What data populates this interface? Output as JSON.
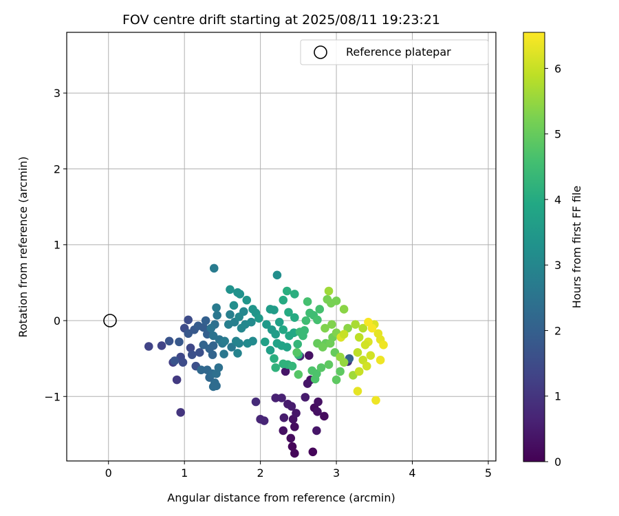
{
  "chart_data": {
    "type": "scatter",
    "title": "FOV centre drift starting at 2025/08/11 19:23:21",
    "xlabel": "Angular distance from reference (arcmin)",
    "ylabel": "Rotation from reference (arcmin)",
    "xlim": [
      -0.55,
      5.1
    ],
    "ylim": [
      -1.85,
      3.8
    ],
    "xticks": [
      0,
      1,
      2,
      3,
      4,
      5
    ],
    "yticks": [
      -1,
      0,
      1,
      2,
      3
    ],
    "xtick_labels": [
      "0",
      "1",
      "2",
      "3",
      "4",
      "5"
    ],
    "ytick_labels": [
      "−1",
      "0",
      "1",
      "2",
      "3"
    ],
    "grid": true,
    "legend": {
      "placement": "top-right",
      "entries": [
        "Reference platepar"
      ]
    },
    "reference_point": {
      "x": 0,
      "y": 0,
      "label": "Reference platepar"
    },
    "colorbar": {
      "label": "Hours from first FF file",
      "range": [
        0,
        6.55
      ],
      "ticks": [
        0,
        1,
        2,
        3,
        4,
        5,
        6
      ],
      "tick_labels": [
        "0",
        "1",
        "2",
        "3",
        "4",
        "5",
        "6"
      ],
      "colormap": "viridis"
    },
    "points": [
      [
        2.42,
        -1.66,
        0.1
      ],
      [
        2.45,
        -1.75,
        0.1
      ],
      [
        2.69,
        -1.73,
        0.1
      ],
      [
        2.4,
        -1.55,
        0.2
      ],
      [
        2.84,
        -1.26,
        0.2
      ],
      [
        2.71,
        -1.15,
        0.2
      ],
      [
        2.45,
        -1.4,
        0.2
      ],
      [
        2.43,
        -1.3,
        0.3
      ],
      [
        2.3,
        -1.45,
        0.3
      ],
      [
        2.76,
        -1.07,
        0.3
      ],
      [
        2.75,
        -1.2,
        0.3
      ],
      [
        2.66,
        -0.78,
        0.3
      ],
      [
        2.64,
        -0.46,
        0.3
      ],
      [
        2.33,
        -0.67,
        0.4
      ],
      [
        2.74,
        -1.45,
        0.4
      ],
      [
        2.47,
        -1.22,
        0.4
      ],
      [
        2.62,
        -0.83,
        0.4
      ],
      [
        2.59,
        -1.01,
        0.5
      ],
      [
        2.31,
        -1.28,
        0.5
      ],
      [
        2.41,
        -1.13,
        0.5
      ],
      [
        2.36,
        -1.1,
        0.5
      ],
      [
        2.2,
        -1.02,
        0.6
      ],
      [
        2.28,
        -1.02,
        0.6
      ],
      [
        2.52,
        -0.47,
        0.7
      ],
      [
        2.0,
        -1.3,
        0.7
      ],
      [
        2.05,
        -1.32,
        0.7
      ],
      [
        1.94,
        -1.07,
        0.8
      ],
      [
        3.15,
        -0.54,
        0.8
      ],
      [
        0.95,
        -1.21,
        1.0
      ],
      [
        0.9,
        -0.78,
        1.1
      ],
      [
        0.85,
        -0.55,
        1.2
      ],
      [
        0.53,
        -0.34,
        1.3
      ],
      [
        0.7,
        -0.33,
        1.3
      ],
      [
        0.95,
        -0.48,
        1.4
      ],
      [
        1.08,
        -0.36,
        1.4
      ],
      [
        1.0,
        -0.1,
        1.5
      ],
      [
        1.05,
        0.01,
        1.5
      ],
      [
        0.98,
        -0.55,
        1.5
      ],
      [
        1.15,
        -0.6,
        1.6
      ],
      [
        1.1,
        -0.45,
        1.6
      ],
      [
        1.2,
        -0.42,
        1.6
      ],
      [
        0.87,
        -0.53,
        1.7
      ],
      [
        0.8,
        -0.27,
        1.7
      ],
      [
        0.93,
        -0.28,
        1.8
      ],
      [
        1.05,
        -0.17,
        1.8
      ],
      [
        1.13,
        -0.12,
        1.8
      ],
      [
        1.18,
        -0.07,
        1.9
      ],
      [
        1.25,
        -0.09,
        1.9
      ],
      [
        1.28,
        0.0,
        2.0
      ],
      [
        3.17,
        -0.5,
        2.0
      ],
      [
        1.3,
        -0.18,
        2.0
      ],
      [
        1.25,
        -0.32,
        2.1
      ],
      [
        1.33,
        -0.37,
        2.1
      ],
      [
        1.38,
        -0.33,
        2.1
      ],
      [
        1.37,
        -0.45,
        2.1
      ],
      [
        1.22,
        -0.65,
        2.2
      ],
      [
        1.3,
        -0.65,
        2.2
      ],
      [
        1.33,
        -0.75,
        2.2
      ],
      [
        1.4,
        -0.82,
        2.3
      ],
      [
        1.42,
        -0.86,
        2.3
      ],
      [
        1.38,
        -0.87,
        2.3
      ],
      [
        1.37,
        -0.7,
        2.3
      ],
      [
        1.42,
        -0.7,
        2.4
      ],
      [
        1.45,
        -0.62,
        2.4
      ],
      [
        1.4,
        -0.05,
        2.4
      ],
      [
        1.35,
        -0.1,
        2.5
      ],
      [
        1.38,
        -0.2,
        2.5
      ],
      [
        1.46,
        -0.25,
        2.5
      ],
      [
        1.5,
        -0.3,
        2.6
      ],
      [
        1.52,
        -0.44,
        2.6
      ],
      [
        1.62,
        -0.35,
        2.6
      ],
      [
        1.43,
        0.07,
        2.6
      ],
      [
        1.42,
        0.17,
        2.7
      ],
      [
        1.39,
        0.69,
        2.7
      ],
      [
        1.53,
        -0.27,
        2.7
      ],
      [
        1.58,
        -0.05,
        2.8
      ],
      [
        1.6,
        0.08,
        2.8
      ],
      [
        1.66,
        -0.02,
        2.8
      ],
      [
        1.68,
        -0.27,
        2.9
      ],
      [
        1.72,
        -0.3,
        2.9
      ],
      [
        1.7,
        -0.43,
        2.9
      ],
      [
        1.75,
        -0.1,
        3.0
      ],
      [
        1.72,
        0.05,
        3.0
      ],
      [
        1.78,
        0.12,
        3.0
      ],
      [
        1.8,
        -0.05,
        3.0
      ],
      [
        1.88,
        -0.02,
        3.1
      ],
      [
        1.83,
        -0.3,
        3.1
      ],
      [
        1.9,
        -0.27,
        3.1
      ],
      [
        2.22,
        0.6,
        3.2
      ],
      [
        1.65,
        0.2,
        3.2
      ],
      [
        1.7,
        0.37,
        3.3
      ],
      [
        1.6,
        0.41,
        3.3
      ],
      [
        1.73,
        0.35,
        3.3
      ],
      [
        1.82,
        0.27,
        3.4
      ],
      [
        1.9,
        0.15,
        3.4
      ],
      [
        1.94,
        0.1,
        3.4
      ],
      [
        1.98,
        0.03,
        3.5
      ],
      [
        2.08,
        -0.05,
        3.5
      ],
      [
        2.15,
        -0.12,
        3.5
      ],
      [
        2.2,
        -0.18,
        3.6
      ],
      [
        2.13,
        0.15,
        3.6
      ],
      [
        2.18,
        0.14,
        3.6
      ],
      [
        2.25,
        -0.02,
        3.7
      ],
      [
        2.06,
        -0.28,
        3.7
      ],
      [
        2.13,
        -0.39,
        3.7
      ],
      [
        2.22,
        -0.3,
        3.8
      ],
      [
        2.28,
        -0.33,
        3.8
      ],
      [
        2.35,
        -0.35,
        3.8
      ],
      [
        2.3,
        -0.12,
        3.9
      ],
      [
        2.38,
        -0.2,
        3.9
      ],
      [
        2.44,
        -0.16,
        3.9
      ],
      [
        2.37,
        0.11,
        4.0
      ],
      [
        2.45,
        0.04,
        4.0
      ],
      [
        2.3,
        0.27,
        4.0
      ],
      [
        2.35,
        0.39,
        4.1
      ],
      [
        2.45,
        0.35,
        4.1
      ],
      [
        2.18,
        -0.5,
        4.1
      ],
      [
        2.2,
        -0.62,
        4.2
      ],
      [
        2.3,
        -0.57,
        4.2
      ],
      [
        2.36,
        -0.58,
        4.2
      ],
      [
        2.42,
        -0.6,
        4.3
      ],
      [
        2.5,
        -0.45,
        4.3
      ],
      [
        2.49,
        -0.31,
        4.3
      ],
      [
        2.56,
        -0.2,
        4.4
      ],
      [
        2.52,
        -0.15,
        4.4
      ],
      [
        2.58,
        -0.13,
        4.4
      ],
      [
        2.6,
        0.0,
        4.5
      ],
      [
        2.65,
        0.1,
        4.5
      ],
      [
        2.7,
        0.07,
        4.5
      ],
      [
        2.75,
        0.01,
        4.6
      ],
      [
        2.62,
        0.25,
        4.6
      ],
      [
        2.78,
        0.15,
        4.6
      ],
      [
        2.68,
        -0.66,
        4.7
      ],
      [
        2.72,
        -0.77,
        4.7
      ],
      [
        2.74,
        -0.7,
        4.7
      ],
      [
        2.5,
        -0.71,
        4.8
      ],
      [
        2.48,
        -0.42,
        4.8
      ],
      [
        2.8,
        -0.62,
        4.8
      ],
      [
        3.0,
        -0.78,
        4.9
      ],
      [
        3.05,
        -0.67,
        4.9
      ],
      [
        2.9,
        -0.58,
        4.9
      ],
      [
        2.98,
        -0.42,
        5.0
      ],
      [
        2.86,
        -0.3,
        5.0
      ],
      [
        2.75,
        -0.3,
        5.0
      ],
      [
        2.82,
        -0.35,
        5.1
      ],
      [
        2.92,
        -0.3,
        5.1
      ],
      [
        2.95,
        -0.22,
        5.1
      ],
      [
        3.0,
        0.26,
        5.2
      ],
      [
        2.93,
        0.23,
        5.2
      ],
      [
        2.88,
        0.28,
        5.2
      ],
      [
        2.85,
        -0.1,
        5.3
      ],
      [
        2.94,
        -0.05,
        5.3
      ],
      [
        3.0,
        -0.16,
        5.3
      ],
      [
        3.1,
        0.15,
        5.4
      ],
      [
        3.15,
        -0.1,
        5.4
      ],
      [
        3.05,
        -0.48,
        5.5
      ],
      [
        3.1,
        -0.55,
        5.5
      ],
      [
        3.22,
        -0.72,
        5.6
      ],
      [
        2.9,
        0.39,
        5.6
      ],
      [
        3.25,
        -0.05,
        5.7
      ],
      [
        3.35,
        -0.1,
        5.8
      ],
      [
        3.3,
        -0.22,
        5.9
      ],
      [
        3.28,
        -0.42,
        5.9
      ],
      [
        3.35,
        -0.52,
        6.0
      ],
      [
        3.3,
        -0.67,
        6.0
      ],
      [
        3.4,
        -0.6,
        6.1
      ],
      [
        3.45,
        -0.46,
        6.1
      ],
      [
        3.42,
        -0.28,
        6.2
      ],
      [
        3.5,
        -0.05,
        6.2
      ],
      [
        3.55,
        -0.17,
        6.3
      ],
      [
        3.58,
        -0.25,
        6.3
      ],
      [
        3.62,
        -0.32,
        6.4
      ],
      [
        3.58,
        -0.52,
        6.4
      ],
      [
        3.52,
        -1.05,
        6.4
      ],
      [
        3.28,
        -0.93,
        6.3
      ],
      [
        3.42,
        -0.02,
        6.5
      ],
      [
        3.47,
        -0.1,
        6.5
      ],
      [
        3.06,
        -0.22,
        6.2
      ],
      [
        3.1,
        -0.18,
        6.0
      ],
      [
        3.38,
        -0.32,
        6.1
      ]
    ]
  }
}
